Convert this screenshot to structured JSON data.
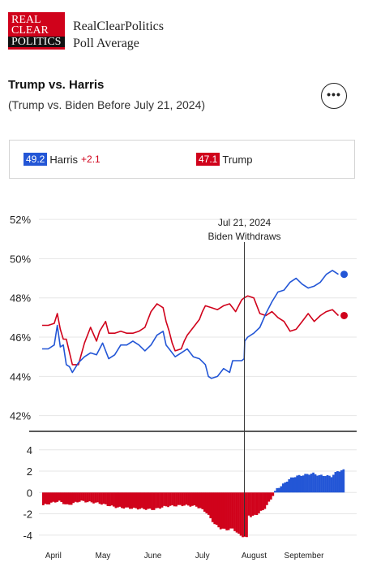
{
  "brand": {
    "logo_lines": [
      "REAL",
      "CLEAR",
      "POLITICS"
    ],
    "name_line1": "RealClearPolitics",
    "name_line2": "Poll Average"
  },
  "header": {
    "title": "Trump vs. Harris",
    "subtitle": "(Trump vs. Biden Before July 21, 2024)",
    "more_label": "•••"
  },
  "legend": {
    "harris": {
      "value": "49.2",
      "name": "Harris",
      "change": "+2.1"
    },
    "trump": {
      "value": "47.1",
      "name": "Trump"
    }
  },
  "colors": {
    "democrat": "#2356d6",
    "republican": "#d0021b",
    "axis": "#222222",
    "grid": "#e6e6e6"
  },
  "chart_data": [
    {
      "type": "line",
      "y_ticks": [
        "52%",
        "50%",
        "48%",
        "46%",
        "44%",
        "42%"
      ],
      "y_tick_values": [
        52,
        50,
        48,
        46,
        44,
        42
      ],
      "ylim": [
        41.2,
        52.5
      ],
      "xlim": [
        0,
        100
      ],
      "annotation": {
        "x": 66.9,
        "line1": "Jul 21, 2024",
        "line2": "Biden Withdraws"
      },
      "series": [
        {
          "name": "Trump",
          "color": "#d0021b",
          "x": [
            0,
            2,
            4,
            5,
            6,
            7,
            8,
            10,
            12,
            14,
            16,
            18,
            19,
            21,
            22,
            24,
            26,
            28,
            30,
            32,
            34,
            36,
            38,
            40,
            41,
            42,
            43,
            44,
            46,
            47,
            48,
            50,
            52,
            53,
            54,
            56,
            58,
            60,
            62,
            64,
            66,
            66.8,
            68,
            70,
            72,
            74,
            76,
            78,
            80,
            82,
            84,
            86,
            88,
            90,
            92,
            94,
            96,
            98
          ],
          "values": [
            46.6,
            46.6,
            46.7,
            47.2,
            46.4,
            45.9,
            45.9,
            44.6,
            44.6,
            45.7,
            46.5,
            45.8,
            46.3,
            46.8,
            46.2,
            46.2,
            46.3,
            46.2,
            46.2,
            46.3,
            46.5,
            47.3,
            47.7,
            47.5,
            46.8,
            46.3,
            45.7,
            45.3,
            45.4,
            45.8,
            46.1,
            46.5,
            46.9,
            47.3,
            47.6,
            47.5,
            47.4,
            47.6,
            47.7,
            47.3,
            47.9,
            48.0,
            48.1,
            48.0,
            47.2,
            47.1,
            47.3,
            47.0,
            46.8,
            46.3,
            46.4,
            46.8,
            47.2,
            46.8,
            47.1,
            47.3,
            47.4,
            47.1
          ]
        },
        {
          "name": "Harris",
          "color": "#2356d6",
          "x": [
            0,
            2,
            4,
            5,
            6,
            7,
            8,
            9,
            10,
            12,
            14,
            16,
            18,
            20,
            22,
            24,
            26,
            28,
            30,
            32,
            34,
            36,
            38,
            40,
            41,
            42,
            44,
            46,
            48,
            50,
            52,
            54,
            55,
            56,
            58,
            60,
            62,
            63,
            64,
            66,
            66.8,
            67,
            68,
            70,
            72,
            74,
            76,
            78,
            80,
            82,
            84,
            86,
            88,
            90,
            92,
            94,
            96,
            98
          ],
          "values": [
            45.4,
            45.4,
            45.6,
            46.6,
            45.5,
            45.6,
            44.6,
            44.5,
            44.2,
            44.7,
            45.0,
            45.2,
            45.1,
            45.7,
            44.9,
            45.1,
            45.6,
            45.6,
            45.8,
            45.6,
            45.3,
            45.6,
            46.1,
            46.3,
            45.6,
            45.4,
            45.0,
            45.2,
            45.4,
            45.0,
            44.9,
            44.6,
            44.0,
            43.9,
            44.0,
            44.4,
            44.2,
            44.8,
            44.8,
            44.8,
            44.9,
            45.8,
            46.0,
            46.2,
            46.5,
            47.2,
            47.8,
            48.3,
            48.4,
            48.8,
            49.0,
            48.7,
            48.5,
            48.6,
            48.8,
            49.2,
            49.4,
            49.2
          ]
        }
      ]
    },
    {
      "type": "bar",
      "y_ticks": [
        "4",
        "2",
        "0",
        "-2",
        "-4"
      ],
      "y_tick_values": [
        4,
        2,
        0,
        -2,
        -4
      ],
      "ylim": [
        -4.7,
        5.2
      ],
      "x_ticks": [
        "April",
        "May",
        "June",
        "July",
        "August",
        "September"
      ],
      "x_tick_positions": [
        3.7,
        20.1,
        36.6,
        53.0,
        70.1,
        86.6
      ],
      "spread_x": [
        0,
        5,
        8,
        12,
        18,
        24,
        30,
        36,
        40,
        46,
        50,
        53,
        56,
        58,
        60,
        62,
        64,
        66,
        66.8,
        67,
        68,
        70,
        72,
        74,
        76,
        78,
        80,
        82,
        84,
        86,
        88,
        90,
        92,
        94,
        96,
        98
      ],
      "spread": [
        -1.2,
        -0.8,
        -1.2,
        -0.8,
        -1.0,
        -1.4,
        -1.5,
        -1.6,
        -1.3,
        -1.2,
        -1.3,
        -1.8,
        -3.0,
        -3.4,
        -3.5,
        -3.4,
        -4.0,
        -4.2,
        -4.3,
        -2.1,
        -2.3,
        -2.0,
        -1.6,
        -0.8,
        0.3,
        0.7,
        1.2,
        1.5,
        1.6,
        1.7,
        1.8,
        1.6,
        1.6,
        1.5,
        2.0,
        2.1
      ]
    }
  ]
}
